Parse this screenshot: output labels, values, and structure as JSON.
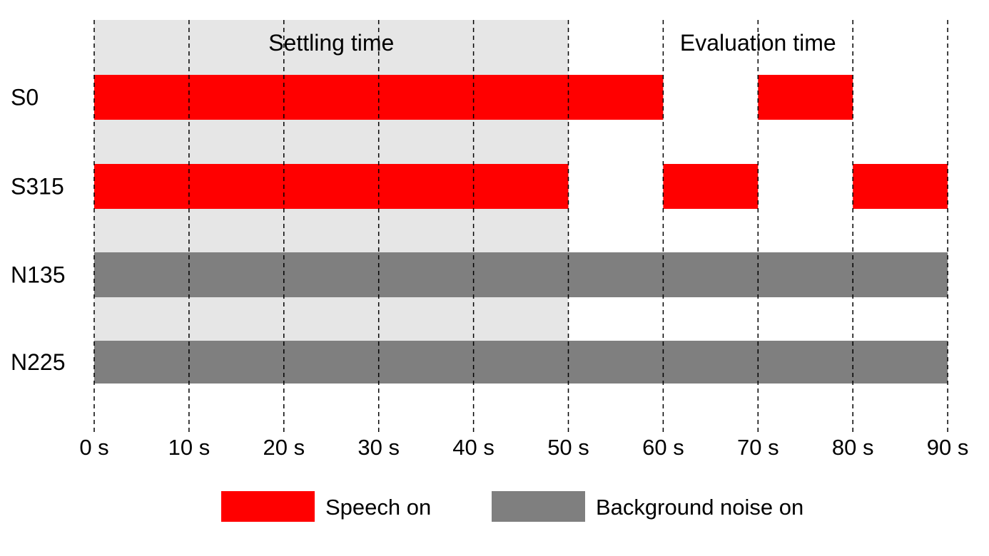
{
  "phases": [
    {
      "label": "Settling time",
      "start": 0,
      "end": 50,
      "shaded": true,
      "shade_color": "#e6e6e6"
    },
    {
      "label": "Evaluation time",
      "start": 50,
      "end": 90,
      "shaded": false
    }
  ],
  "rows": [
    {
      "label": "S0",
      "type": "speech",
      "segments": [
        [
          0,
          60
        ],
        [
          70,
          80
        ]
      ]
    },
    {
      "label": "S315",
      "type": "speech",
      "segments": [
        [
          0,
          50
        ],
        [
          60,
          70
        ],
        [
          80,
          90
        ]
      ]
    },
    {
      "label": "N135",
      "type": "noise",
      "segments": [
        [
          0,
          90
        ]
      ]
    },
    {
      "label": "N225",
      "type": "noise",
      "segments": [
        [
          0,
          90
        ]
      ]
    }
  ],
  "ticks": [
    {
      "value": 0,
      "label": "0 s"
    },
    {
      "value": 10,
      "label": "10 s"
    },
    {
      "value": 20,
      "label": "20 s"
    },
    {
      "value": 30,
      "label": "30 s"
    },
    {
      "value": 40,
      "label": "40 s"
    },
    {
      "value": 50,
      "label": "50 s"
    },
    {
      "value": 60,
      "label": "60 s"
    },
    {
      "value": 70,
      "label": "70 s"
    },
    {
      "value": 80,
      "label": "80 s"
    },
    {
      "value": 90,
      "label": "90 s"
    }
  ],
  "legend": [
    {
      "key": "speech",
      "label": "Speech on",
      "color": "#ff0000"
    },
    {
      "key": "noise",
      "label": "Background noise on",
      "color": "#7f7f7f"
    }
  ],
  "colors": {
    "speech": "#ff0000",
    "noise": "#7f7f7f",
    "gridline": "#000000"
  }
}
